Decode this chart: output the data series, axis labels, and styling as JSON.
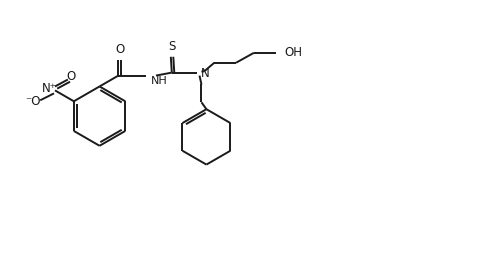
{
  "fig_width": 4.8,
  "fig_height": 2.54,
  "dpi": 100,
  "bg_color": "#ffffff",
  "line_color": "#1a1a1a",
  "line_width": 1.4,
  "font_size": 8.5,
  "xlim": [
    0,
    48
  ],
  "ylim": [
    0,
    25.4
  ]
}
